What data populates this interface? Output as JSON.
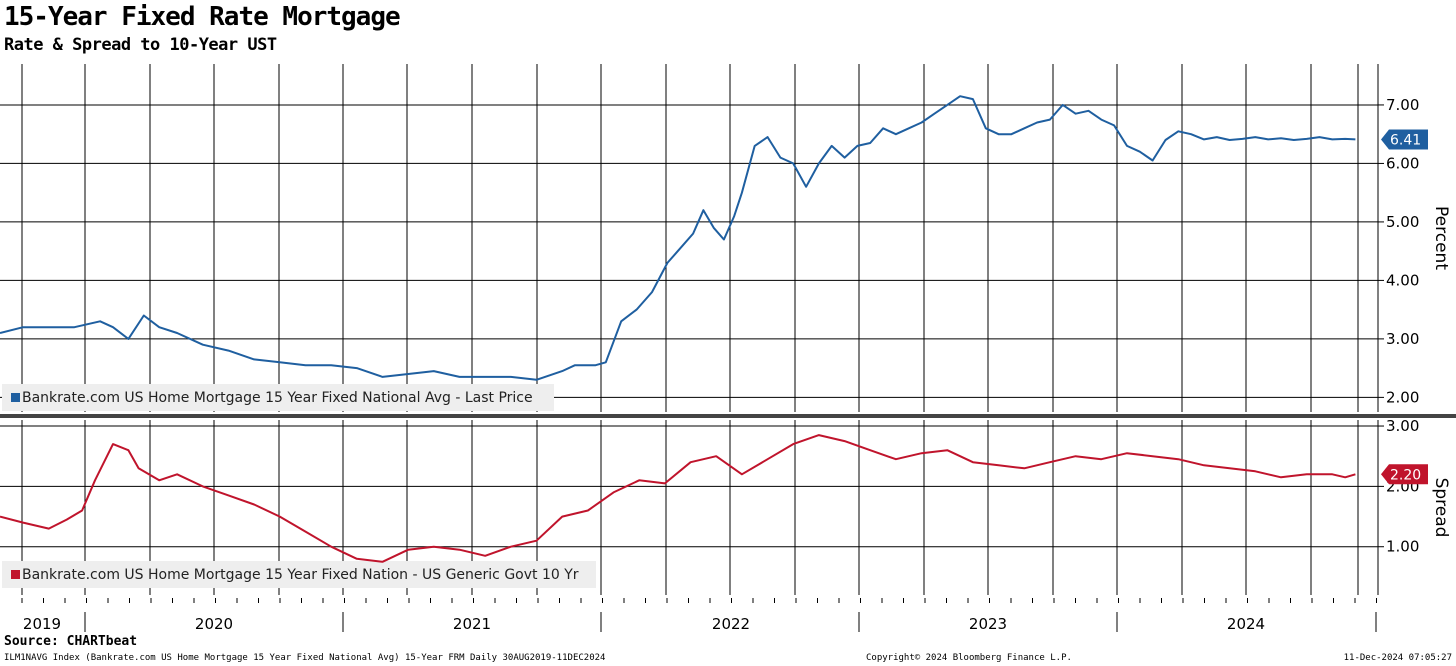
{
  "title": "15-Year Fixed Rate Mortgage",
  "subtitle": "Rate & Spread to 10-Year UST",
  "source": "Source: CHARTbeat",
  "footer": {
    "left": "ILM1NAVG Index (Bankrate.com US Home Mortgage 15 Year Fixed National Avg) 15-Year FRM  Daily 30AUG2019-11DEC2024",
    "middle": "Copyright© 2024 Bloomberg Finance L.P.",
    "right": "11-Dec-2024 07:05:27"
  },
  "colors": {
    "rate": "#1f5fa0",
    "spread": "#c0142c",
    "grid": "#000000",
    "legend_bg": "#eeeeee"
  },
  "chart_data": [
    {
      "type": "line",
      "name": "rate-panel",
      "series": [
        {
          "name": "Bankrate.com US Home Mortgage 15 Year Fixed National Avg - Last Price",
          "color": "#1f5fa0",
          "x": [
            2019.66,
            2019.75,
            2019.85,
            2019.95,
            2020.05,
            2020.1,
            2020.16,
            2020.22,
            2020.28,
            2020.35,
            2020.45,
            2020.55,
            2020.65,
            2020.75,
            2020.85,
            2020.95,
            2021.05,
            2021.15,
            2021.25,
            2021.35,
            2021.45,
            2021.55,
            2021.65,
            2021.75,
            2021.85,
            2021.9,
            2021.98,
            2022.02,
            2022.08,
            2022.14,
            2022.2,
            2022.26,
            2022.3,
            2022.36,
            2022.4,
            2022.44,
            2022.48,
            2022.52,
            2022.55,
            2022.6,
            2022.65,
            2022.7,
            2022.75,
            2022.8,
            2022.85,
            2022.9,
            2022.95,
            2023.0,
            2023.05,
            2023.1,
            2023.15,
            2023.2,
            2023.25,
            2023.3,
            2023.35,
            2023.4,
            2023.45,
            2023.5,
            2023.55,
            2023.6,
            2023.65,
            2023.7,
            2023.75,
            2023.8,
            2023.85,
            2023.9,
            2023.95,
            2024.0,
            2024.05,
            2024.1,
            2024.15,
            2024.2,
            2024.25,
            2024.3,
            2024.35,
            2024.4,
            2024.45,
            2024.5,
            2024.55,
            2024.6,
            2024.65,
            2024.7,
            2024.75,
            2024.8,
            2024.85,
            2024.9,
            2024.94
          ],
          "y": [
            3.1,
            3.2,
            3.2,
            3.2,
            3.3,
            3.2,
            3.0,
            3.4,
            3.2,
            3.1,
            2.9,
            2.8,
            2.65,
            2.6,
            2.55,
            2.55,
            2.5,
            2.35,
            2.4,
            2.45,
            2.35,
            2.35,
            2.35,
            2.3,
            2.45,
            2.55,
            2.55,
            2.6,
            3.3,
            3.5,
            3.8,
            4.3,
            4.5,
            4.8,
            5.2,
            4.9,
            4.7,
            5.1,
            5.5,
            6.3,
            6.45,
            6.1,
            6.0,
            5.6,
            6.0,
            6.3,
            6.1,
            6.3,
            6.35,
            6.6,
            6.5,
            6.6,
            6.7,
            6.85,
            7.0,
            7.15,
            7.1,
            6.6,
            6.5,
            6.5,
            6.6,
            6.7,
            6.75,
            7.0,
            6.85,
            6.9,
            6.75,
            6.65,
            6.3,
            6.2,
            6.05,
            6.4,
            6.55,
            6.5,
            6.41,
            6.45,
            6.4,
            6.42,
            6.45,
            6.41,
            6.43,
            6.4,
            6.42,
            6.45,
            6.41,
            6.42,
            6.41
          ],
          "last": "6.41"
        }
      ],
      "yticks": [
        "7.00",
        "6.00",
        "5.00",
        "4.00",
        "3.00",
        "2.00"
      ],
      "ylabel": "Percent",
      "ylim": [
        1.75,
        7.7
      ]
    },
    {
      "type": "line",
      "name": "spread-panel",
      "series": [
        {
          "name": "Bankrate.com US Home Mortgage 15 Year Fixed Nation - US Generic Govt 10 Yr",
          "color": "#c0142c",
          "x": [
            2019.66,
            2019.75,
            2019.85,
            2019.92,
            2019.98,
            2020.03,
            2020.1,
            2020.16,
            2020.2,
            2020.28,
            2020.35,
            2020.45,
            2020.55,
            2020.65,
            2020.75,
            2020.85,
            2020.95,
            2021.05,
            2021.15,
            2021.25,
            2021.35,
            2021.45,
            2021.55,
            2021.65,
            2021.75,
            2021.85,
            2021.95,
            2022.05,
            2022.15,
            2022.25,
            2022.35,
            2022.45,
            2022.55,
            2022.65,
            2022.75,
            2022.85,
            2022.95,
            2023.05,
            2023.15,
            2023.25,
            2023.35,
            2023.45,
            2023.55,
            2023.65,
            2023.75,
            2023.85,
            2023.95,
            2024.05,
            2024.15,
            2024.25,
            2024.35,
            2024.45,
            2024.55,
            2024.65,
            2024.75,
            2024.85,
            2024.9,
            2024.94
          ],
          "y": [
            1.5,
            1.4,
            1.3,
            1.45,
            1.6,
            2.1,
            2.7,
            2.6,
            2.3,
            2.1,
            2.2,
            2.0,
            1.85,
            1.7,
            1.5,
            1.25,
            1.0,
            0.8,
            0.75,
            0.95,
            1.0,
            0.95,
            0.85,
            1.0,
            1.1,
            1.5,
            1.6,
            1.9,
            2.1,
            2.05,
            2.4,
            2.5,
            2.2,
            2.45,
            2.7,
            2.85,
            2.75,
            2.6,
            2.45,
            2.55,
            2.6,
            2.4,
            2.35,
            2.3,
            2.4,
            2.5,
            2.45,
            2.55,
            2.5,
            2.45,
            2.35,
            2.3,
            2.25,
            2.15,
            2.2,
            2.2,
            2.15,
            2.2
          ],
          "last": "2.20"
        }
      ],
      "yticks": [
        "3.00",
        "2.00",
        "1.00"
      ],
      "ylabel": "Spread",
      "ylim": [
        0.2,
        3.1
      ]
    }
  ],
  "x_axis": {
    "years": [
      "2019",
      "2020",
      "2021",
      "2022",
      "2023",
      "2024"
    ]
  }
}
